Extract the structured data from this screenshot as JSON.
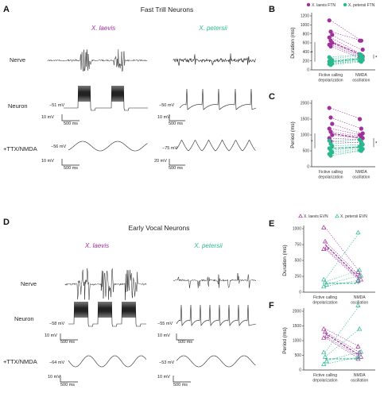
{
  "colors": {
    "laevis": "#a0309a",
    "petersii": "#2bb88f",
    "trace": "#222222"
  },
  "panels": {
    "A": {
      "label": "A",
      "title": "Fast Trill Neurons",
      "species_left": "X. laevis",
      "species_right": "X. petersii",
      "rows": [
        "Nerve",
        "Neuron",
        "+TTX/NMDA"
      ],
      "annotations": {
        "neuron_left_mv": "−51 mV",
        "neuron_right_mv": "−50 mV",
        "ttx_left_mv": "−56 mV",
        "ttx_right_mv": "−75 mV",
        "scale_neuron_left_v": "10 mV",
        "scale_neuron_left_t": "500 ms",
        "scale_neuron_right_v": "10 mV",
        "scale_neuron_right_t": "500 ms",
        "scale_ttx_left_v": "10 mV",
        "scale_ttx_left_t": "500 ms",
        "scale_ttx_right_v": "20 mV",
        "scale_ttx_right_t": "500 ms"
      }
    },
    "D": {
      "label": "D",
      "title": "Early Vocal Neurons",
      "species_left": "X. laevis",
      "species_right": "X. petersii",
      "rows": [
        "Nerve",
        "Neuron",
        "+TTX/NMDA"
      ],
      "annotations": {
        "neuron_left_mv": "−58 mV",
        "neuron_right_mv": "−55 mV",
        "ttx_left_mv": "−64 mV",
        "ttx_right_mv": "−53 mV",
        "scale_neuron_left_v": "10 mV",
        "scale_neuron_left_t": "500 ms",
        "scale_neuron_right_v": "10 mV",
        "scale_neuron_right_t": "500 ms",
        "scale_ttx_left_v": "10 mV",
        "scale_ttx_left_t": "500 ms",
        "scale_ttx_right_v": "10 mV",
        "scale_ttx_right_t": "500 ms"
      }
    }
  },
  "chart_data": [
    {
      "panel": "B",
      "type": "scatter",
      "legend": [
        "X. laevis FTN",
        "X. petersii FTN"
      ],
      "ylabel": "Duration (ms)",
      "yticks": [
        0,
        200,
        400,
        600,
        800,
        1000,
        1200
      ],
      "ylim": [
        0,
        1200
      ],
      "categories": [
        "Fictive calling depolarization",
        "NMDA oscillation"
      ],
      "significance": [
        "*",
        "*"
      ],
      "series": [
        {
          "name": "X. laevis FTN",
          "species": "laevis",
          "mean": [
            620,
            340
          ],
          "pairs": [
            [
              1100,
              650
            ],
            [
              850,
              650
            ],
            [
              780,
              450
            ],
            [
              720,
              350
            ],
            [
              650,
              320
            ],
            [
              600,
              300
            ],
            [
              560,
              280
            ],
            [
              520,
              250
            ]
          ]
        },
        {
          "name": "X. petersii FTN",
          "species": "petersii",
          "mean": [
            180,
            250
          ],
          "pairs": [
            [
              280,
              350
            ],
            [
              240,
              330
            ],
            [
              210,
              280
            ],
            [
              190,
              260
            ],
            [
              160,
              240
            ],
            [
              140,
              220
            ],
            [
              130,
              200
            ],
            [
              110,
              180
            ]
          ]
        }
      ]
    },
    {
      "panel": "C",
      "type": "scatter",
      "ylabel": "Period (ms)",
      "yticks": [
        0,
        500,
        1000,
        1500,
        2000
      ],
      "ylim": [
        0,
        2000
      ],
      "categories": [
        "Fictive calling depolarization",
        "NMDA oscillation"
      ],
      "significance": [
        "*",
        "*"
      ],
      "series": [
        {
          "name": "X. laevis FTN",
          "species": "laevis",
          "mean": [
            1050,
            900
          ],
          "pairs": [
            [
              1850,
              1500
            ],
            [
              1550,
              1200
            ],
            [
              1350,
              1050
            ],
            [
              1200,
              1000
            ],
            [
              1100,
              950
            ],
            [
              1000,
              900
            ],
            [
              900,
              850
            ],
            [
              800,
              750
            ]
          ]
        },
        {
          "name": "X. petersii FTN",
          "species": "petersii",
          "mean": [
            580,
            620
          ],
          "pairs": [
            [
              820,
              850
            ],
            [
              720,
              780
            ],
            [
              650,
              700
            ],
            [
              580,
              640
            ],
            [
              520,
              600
            ],
            [
              460,
              560
            ],
            [
              400,
              520
            ],
            [
              350,
              500
            ]
          ]
        }
      ]
    },
    {
      "panel": "E",
      "type": "scatter",
      "legend": [
        "X. laevis EVN",
        "X. petersii EVN"
      ],
      "ylabel": "Duration (ms)",
      "yticks": [
        0,
        250,
        500,
        750,
        1000
      ],
      "ylim": [
        0,
        1000
      ],
      "categories": [
        "Fictive calling depolarization",
        "NMDA oscillation"
      ],
      "series": [
        {
          "name": "X. laevis EVN",
          "species": "laevis",
          "mean": [
            750,
            220
          ],
          "pairs": [
            [
              1020,
              320
            ],
            [
              800,
              260
            ],
            [
              700,
              200
            ],
            [
              680,
              180
            ]
          ]
        },
        {
          "name": "X. petersii EVN",
          "species": "petersii",
          "mean": [
            140,
            140
          ],
          "pairs": [
            [
              200,
              940
            ],
            [
              160,
              350
            ],
            [
              120,
              260
            ],
            [
              90,
              190
            ]
          ]
        }
      ]
    },
    {
      "panel": "F",
      "type": "scatter",
      "ylabel": "Period (ms)",
      "yticks": [
        0,
        500,
        1000,
        1500,
        2000
      ],
      "ylim": [
        0,
        2000
      ],
      "categories": [
        "Fictive calling depolarization",
        "NMDA oscillation"
      ],
      "series": [
        {
          "name": "X. laevis EVN",
          "species": "laevis",
          "mean": [
            1250,
            500
          ],
          "pairs": [
            [
              1400,
              800
            ],
            [
              1300,
              600
            ],
            [
              1150,
              450
            ],
            [
              1100,
              380
            ]
          ]
        },
        {
          "name": "X. petersii EVN",
          "species": "petersii",
          "mean": [
            380,
            380
          ],
          "pairs": [
            [
              600,
              2200
            ],
            [
              450,
              1400
            ],
            [
              300,
              620
            ],
            [
              200,
              450
            ]
          ]
        }
      ]
    }
  ]
}
